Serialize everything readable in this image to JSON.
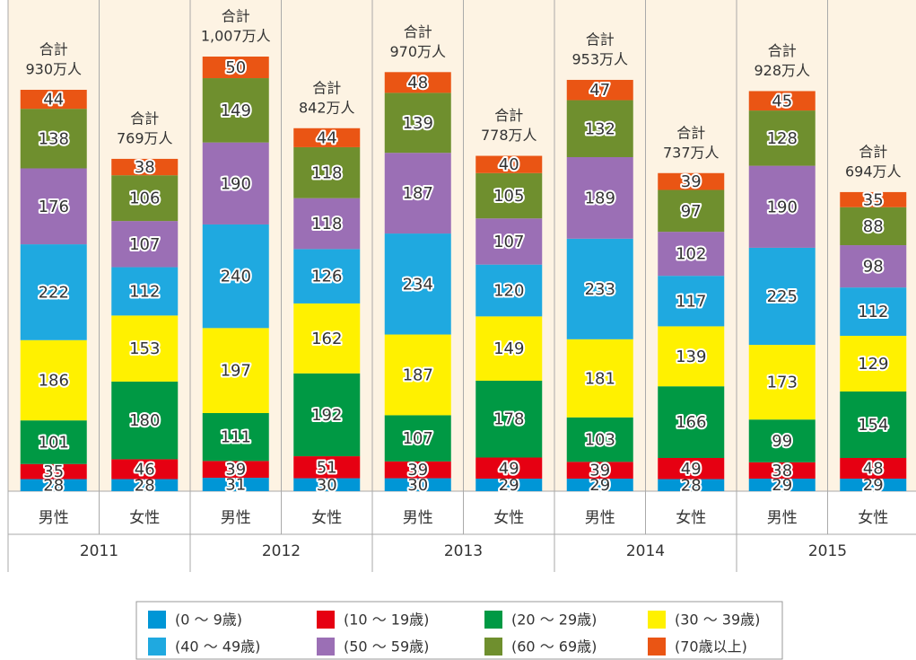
{
  "chart_data": {
    "type": "stacked_bar",
    "categories": [
      "男性",
      "女性",
      "男性",
      "女性",
      "男性",
      "女性",
      "男性",
      "女性",
      "男性",
      "女性"
    ],
    "groups": [
      "2011",
      "2012",
      "2013",
      "2014",
      "2015"
    ],
    "series": [
      {
        "name": "(0 ～ 9歳)",
        "color": "#0096d6",
        "values": [
          28,
          28,
          31,
          30,
          30,
          29,
          29,
          28,
          29,
          29
        ]
      },
      {
        "name": "(10 ～ 19歳)",
        "color": "#e60012",
        "values": [
          35,
          46,
          39,
          51,
          39,
          49,
          39,
          49,
          38,
          48
        ]
      },
      {
        "name": "(20 ～ 29歳)",
        "color": "#009944",
        "values": [
          101,
          180,
          111,
          192,
          107,
          178,
          103,
          166,
          99,
          154
        ]
      },
      {
        "name": "(30 ～ 39歳)",
        "color": "#fff100",
        "values": [
          186,
          153,
          197,
          162,
          187,
          149,
          181,
          139,
          173,
          129
        ]
      },
      {
        "name": "(40 ～ 49歳)",
        "color": "#1fa9e0",
        "values": [
          222,
          112,
          240,
          126,
          234,
          120,
          233,
          117,
          225,
          112
        ]
      },
      {
        "name": "(50 ～ 59歳)",
        "color": "#9b6fb5",
        "values": [
          176,
          107,
          190,
          118,
          187,
          107,
          189,
          102,
          190,
          98
        ]
      },
      {
        "name": "(60 ～ 69歳)",
        "color": "#6f8f2e",
        "values": [
          138,
          106,
          149,
          118,
          139,
          105,
          132,
          97,
          128,
          88
        ]
      },
      {
        "name": "(70歳以上)",
        "color": "#ea5514",
        "values": [
          44,
          38,
          50,
          44,
          48,
          40,
          47,
          39,
          45,
          35
        ]
      }
    ],
    "total_title": "合計",
    "totals": [
      930,
      769,
      1007,
      842,
      970,
      778,
      953,
      737,
      928,
      694
    ],
    "total_labels": [
      "930万人",
      "769万人",
      "1,007万人",
      "842万人",
      "970万人",
      "778万人",
      "953万人",
      "737万人",
      "928万人",
      "694万人"
    ]
  }
}
